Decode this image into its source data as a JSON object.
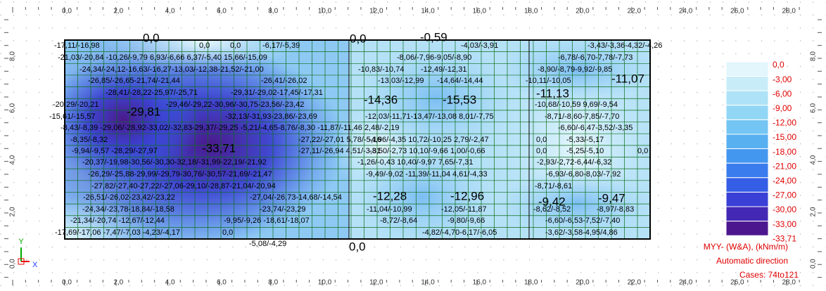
{
  "top_ruler": [
    "0,0",
    "2,0",
    "4,0",
    "6,0",
    "8,0",
    "10,0",
    "12,0",
    "14,0",
    "16,0",
    "18,0",
    "20,0",
    "22,0",
    "24,0",
    "26,0",
    "28,0"
  ],
  "bottom_ruler": [
    "0,0",
    "2,0",
    "4,0",
    "6,0",
    "8,0",
    "10,0",
    "12,0",
    "14,0",
    "16,0",
    "18,0",
    "20,0",
    "22,0",
    "24,0",
    "26,0",
    "28,0"
  ],
  "left_ruler": [
    "8,0",
    "6,0",
    "4,0",
    "2,0",
    "0,0"
  ],
  "right_ruler": [
    "8,0",
    "6,0",
    "4,0",
    "2,0",
    "0,0"
  ],
  "map_labels": [
    "-17,11/-16,98",
    "0,0",
    "0,0",
    "0,0",
    "-6,17/-5,39",
    "0,0",
    "-0,59",
    "-4,03/-3,91",
    "-3,43/-3,36-4,32/-4,26",
    "-21,03/-20,84 -10,26/-9,79 6,93/-6,66 6,37/-5,40 15,66/-15,09",
    "-8,06/-7,96-9,05/-8,90",
    "-6,78/-6,70-7,78/-7,73",
    "-24,34/-24,12-16,63/-16,27-13,03/-12,38-21,52/-21,00",
    "-10,83/-10,74",
    "-12,49/-12,31",
    "-8,90/-8,79-9,92/-9,85",
    "-26,85/-26,65-21,74/-21,44",
    "-26,41/-26,02",
    "-13,03/-12,99",
    "-14,64/-14,44",
    "-10,11/-10,05",
    "-11,07",
    "-28,41/-28,22-25,97/-25,71",
    "-29,31/-29,02-17,45/-17,31",
    "-14,36",
    "-15,53",
    "-11,13",
    "-20,29/-20,21",
    "-29,81",
    "-29,46/-29,22-30,96/-30,75-23,56/-23,42",
    "-10,68/-10,59 9,69/-9,54",
    "-15,61/-15,57",
    "-32,13/-31,93-23,86/-23,69",
    "-12,03/-11,71-13,47/-13,08 8,01/-7,75",
    "-8,71/-8,60-7,85/-7,70",
    "-8,43/-8,39 -29,06/-28,92-33,02/-32,83-29,37/-29,25 -5,21/-4,65-8,76/-8,30 -11,87/-11,46 2,48/-2,19",
    "-6,60/-6,47-3,52/-3,35",
    "-8,35/-8,32",
    "-33,71",
    "-27,22/-27,01 5,78/-5,16",
    "-4,96/-4,35 10,72/-10,25 2,79/-2,47",
    "0,0",
    "-5,33/-5,17",
    "-9,94/-9,57 -28,29/-27,97",
    "-27,11/-26,94 4,51/-3,81",
    "-3,50/-2,73 10,10/-9,66 1,00/-0,66",
    "0,0",
    "-5,25/-5,10",
    "0,0",
    "-20,37/-19,98-30,56/-30,30-32,18/-31,99-22,19/-21,92",
    "-1,26/-0,43 10,40/-9,97 7,65/-7,31",
    "-2,93/-2,72-6,44/-6,32",
    "-26,29/-25,88-29,99/-29,79-30,76/-30,57-21,69/-21,47",
    "-9,49/-9,02 -11,39/-11,04 4,61/-4,33",
    "-6,93/-6,80-8,03/-7,92",
    "-27,82/-27,40-27,22/-27,06-29,10/-28,87-21,04/-20,94",
    "-8,71/-8,61",
    "-12,28",
    "-12,96",
    "-9,47",
    "-9,42",
    "-26,51/-26,02-23,42/-23,22",
    "-27,04/-26,73-14,68/-14,54",
    "-24,34/-23,78-18,84/-18,58",
    "-23,74/-23,29",
    "-11,04/-10,99",
    "-12,05/-11,87",
    "-8,62/-8,52",
    "-8,97/-8,83",
    "-21,34/-20,74 -12,67/-12,44",
    "-9,95/-9,26 -18,61/-18,07",
    "-8,72/-8,64",
    "-9,80/-9,66",
    "-6,60/-6,53-7,52/-7,40",
    "-17,69/-17,06 -7,47/-7,03 -4,23/-4,17",
    "0,0",
    "-4,82/-4,70-6,17/-6,05",
    "-3,62/-3,58-4,95/4,86",
    "-5,08/-4,29",
    "0,0"
  ],
  "legend": {
    "values": [
      "0,0",
      "-3,00",
      "-6,00",
      "-9,00",
      "-12,00",
      "-15,00",
      "-18,00",
      "-21,00",
      "-24,00",
      "-27,00",
      "-30,00",
      "-33,00",
      "-33,71"
    ],
    "title": "MYY- (W&A), (kNm/m)",
    "direction": "Automatic direction",
    "cases": "Cases: 74to121"
  },
  "axis_icon": {
    "x": "X",
    "y": "Y"
  }
}
